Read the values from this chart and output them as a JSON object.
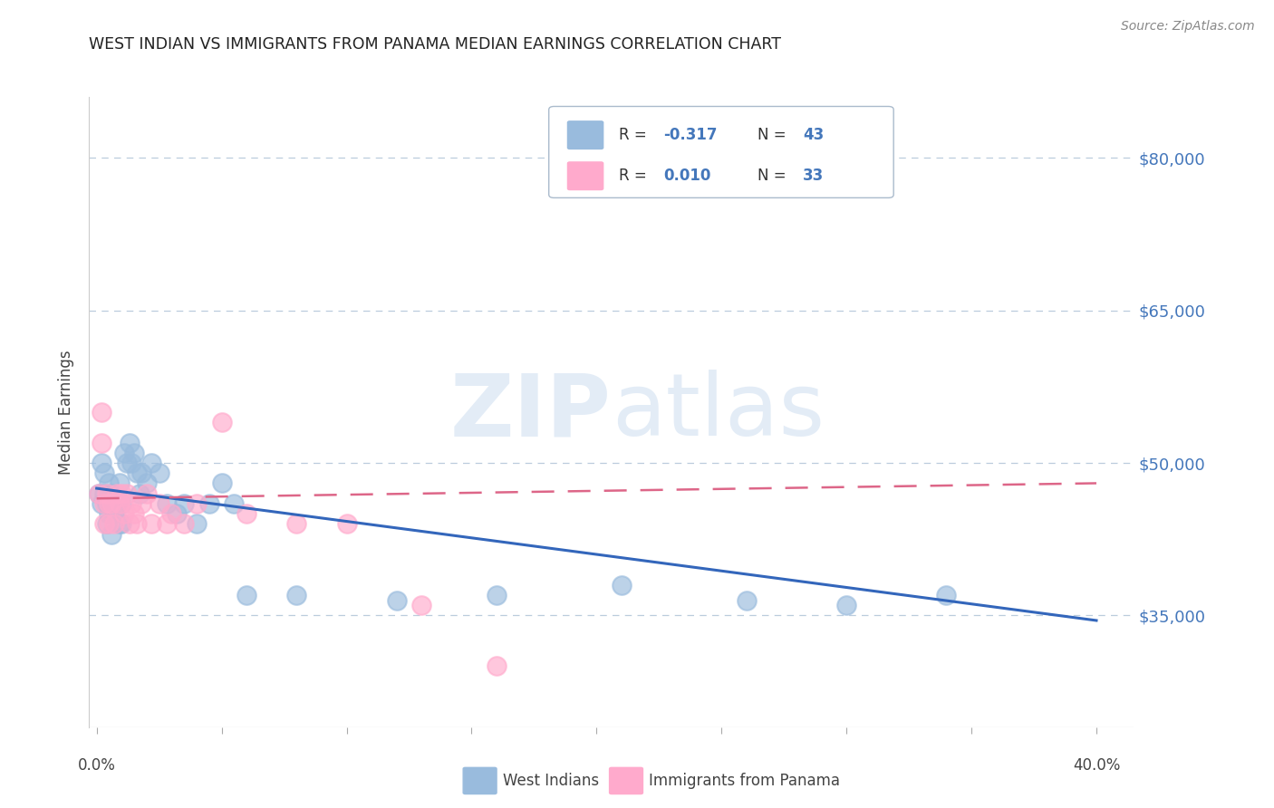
{
  "title": "WEST INDIAN VS IMMIGRANTS FROM PANAMA MEDIAN EARNINGS CORRELATION CHART",
  "source": "Source: ZipAtlas.com",
  "ylabel": "Median Earnings",
  "y_ticks": [
    35000,
    50000,
    65000,
    80000
  ],
  "y_tick_labels": [
    "$35,000",
    "$50,000",
    "$65,000",
    "$80,000"
  ],
  "ylim": [
    24000,
    86000
  ],
  "xlim": [
    -0.003,
    0.415
  ],
  "blue_color": "#99BBDD",
  "pink_color": "#FFAACC",
  "blue_line_color": "#3366BB",
  "pink_line_color": "#DD6688",
  "grid_color": "#BBCCDD",
  "background_color": "#FFFFFF",
  "title_color": "#222222",
  "right_label_color": "#4477BB",
  "watermark_color": "#CCDDF0",
  "legend_label_blue": "West Indians",
  "legend_label_pink": "Immigrants from Panama",
  "blue_x": [
    0.001,
    0.002,
    0.002,
    0.003,
    0.003,
    0.004,
    0.004,
    0.005,
    0.005,
    0.006,
    0.006,
    0.007,
    0.008,
    0.009,
    0.009,
    0.01,
    0.01,
    0.011,
    0.012,
    0.013,
    0.014,
    0.015,
    0.016,
    0.017,
    0.018,
    0.02,
    0.022,
    0.025,
    0.028,
    0.032,
    0.035,
    0.04,
    0.045,
    0.05,
    0.055,
    0.06,
    0.08,
    0.12,
    0.16,
    0.21,
    0.26,
    0.3,
    0.34
  ],
  "blue_y": [
    47000,
    50000,
    46000,
    49000,
    47000,
    46000,
    44000,
    48000,
    45000,
    47000,
    43000,
    45000,
    46000,
    44000,
    48000,
    46000,
    44000,
    51000,
    50000,
    52000,
    50000,
    51000,
    49000,
    47000,
    49000,
    48000,
    50000,
    49000,
    46000,
    45000,
    46000,
    44000,
    46000,
    48000,
    46000,
    37000,
    37000,
    36500,
    37000,
    38000,
    36500,
    36000,
    37000
  ],
  "pink_x": [
    0.001,
    0.002,
    0.002,
    0.003,
    0.003,
    0.004,
    0.005,
    0.005,
    0.006,
    0.007,
    0.008,
    0.009,
    0.01,
    0.011,
    0.012,
    0.013,
    0.014,
    0.015,
    0.016,
    0.018,
    0.02,
    0.022,
    0.025,
    0.028,
    0.03,
    0.035,
    0.04,
    0.05,
    0.06,
    0.08,
    0.1,
    0.13,
    0.16
  ],
  "pink_y": [
    47000,
    55000,
    52000,
    46000,
    44000,
    47000,
    46000,
    44000,
    46000,
    44000,
    47000,
    46000,
    47000,
    45000,
    47000,
    44000,
    46000,
    45000,
    44000,
    46000,
    47000,
    44000,
    46000,
    44000,
    45000,
    44000,
    46000,
    54000,
    45000,
    44000,
    44000,
    36000,
    30000
  ],
  "blue_trend_x0": 0.0,
  "blue_trend_y0": 47500,
  "blue_trend_x1": 0.4,
  "blue_trend_y1": 34500,
  "pink_trend_x0": 0.0,
  "pink_trend_y0": 46500,
  "pink_trend_x1": 0.4,
  "pink_trend_y1": 48000
}
